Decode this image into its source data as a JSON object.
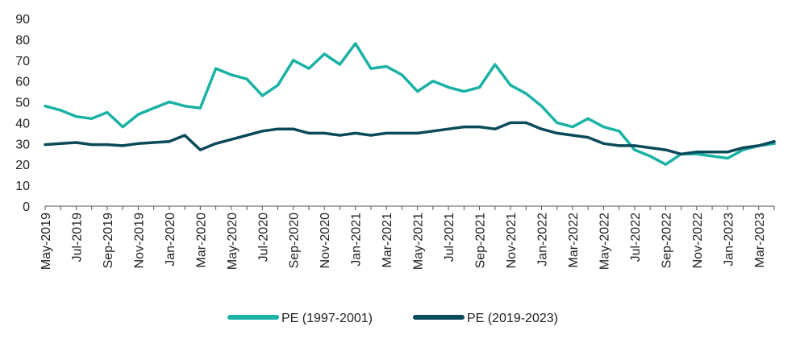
{
  "chart_data": {
    "type": "line",
    "title": "",
    "xlabel": "",
    "ylabel": "",
    "ylim": [
      0,
      90
    ],
    "yticks": [
      0,
      10,
      20,
      30,
      40,
      50,
      60,
      70,
      80,
      90
    ],
    "grid": false,
    "legend": "bottom",
    "x_tick_labels": [
      "May-2019",
      "Jul-2019",
      "Sep-2019",
      "Nov-2019",
      "Jan-2020",
      "Mar-2020",
      "May-2020",
      "Jul-2020",
      "Sep-2020",
      "Nov-2020",
      "Jan-2021",
      "Mar-2021",
      "May-2021",
      "Jul-2021",
      "Sep-2021",
      "Nov-2021",
      "Jan-2022",
      "Mar-2022",
      "May-2022",
      "Jul-2022",
      "Sep-2022",
      "Nov-2022",
      "Jan-2023",
      "Mar-2023"
    ],
    "x": [
      "May-2019",
      "Jun-2019",
      "Jul-2019",
      "Aug-2019",
      "Sep-2019",
      "Oct-2019",
      "Nov-2019",
      "Dec-2019",
      "Jan-2020",
      "Feb-2020",
      "Mar-2020",
      "Apr-2020",
      "May-2020",
      "Jun-2020",
      "Jul-2020",
      "Aug-2020",
      "Sep-2020",
      "Oct-2020",
      "Nov-2020",
      "Dec-2020",
      "Jan-2021",
      "Feb-2021",
      "Mar-2021",
      "Apr-2021",
      "May-2021",
      "Jun-2021",
      "Jul-2021",
      "Aug-2021",
      "Sep-2021",
      "Oct-2021",
      "Nov-2021",
      "Dec-2021",
      "Jan-2022",
      "Feb-2022",
      "Mar-2022",
      "Apr-2022",
      "May-2022",
      "Jun-2022",
      "Jul-2022",
      "Aug-2022",
      "Sep-2022",
      "Oct-2022",
      "Nov-2022",
      "Dec-2022",
      "Jan-2023",
      "Feb-2023",
      "Mar-2023",
      "Apr-2023"
    ],
    "series": [
      {
        "name": "PE (1997-2001)",
        "color": "#1ab2a5",
        "values": [
          48,
          46,
          43,
          42,
          45,
          38,
          44,
          47,
          50,
          48,
          47,
          66,
          63,
          61,
          53,
          58,
          70,
          66,
          73,
          68,
          78,
          66,
          67,
          63,
          55,
          60,
          57,
          55,
          57,
          68,
          58,
          54,
          48,
          40,
          38,
          42,
          38,
          36,
          27,
          24,
          20,
          25,
          25,
          24,
          23,
          27,
          29,
          30
        ]
      },
      {
        "name": "PE (2019-2023)",
        "color": "#0b4a5a",
        "values": [
          29.5,
          30,
          30.5,
          29.5,
          29.5,
          29,
          30,
          30.5,
          31,
          34,
          27,
          30,
          32,
          34,
          36,
          37,
          37,
          35,
          35,
          34,
          35,
          34,
          35,
          35,
          35,
          36,
          37,
          38,
          38,
          37,
          40,
          40,
          37,
          35,
          34,
          33,
          30,
          29,
          29,
          28,
          27,
          25,
          26,
          26,
          26,
          28,
          29,
          31
        ]
      }
    ]
  }
}
